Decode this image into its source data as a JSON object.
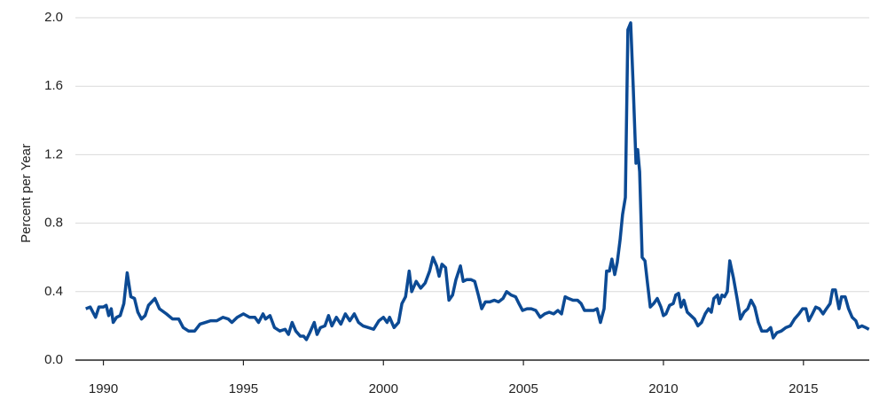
{
  "chart_data": {
    "type": "line",
    "y_label": "Percent per Year",
    "color": "#0c4a94",
    "grid": true,
    "xlim": [
      1989,
      2017.35
    ],
    "xticks": [
      1990,
      1995,
      2000,
      2005,
      2010,
      2015
    ],
    "ylim": [
      0,
      2
    ],
    "yticks": [
      {
        "value": 0,
        "label": "0.0"
      },
      0.4,
      0.8,
      1.2,
      1.6,
      {
        "value": 2,
        "label": "2.0"
      }
    ],
    "x": [
      1989.37,
      1989.53,
      1989.72,
      1989.84,
      1990.0,
      1990.1,
      1990.19,
      1990.28,
      1990.35,
      1990.47,
      1990.6,
      1990.73,
      1990.85,
      1990.98,
      1991.11,
      1991.23,
      1991.36,
      1991.49,
      1991.61,
      1991.84,
      1992.0,
      1992.25,
      1992.47,
      1992.69,
      1992.85,
      1993.04,
      1993.26,
      1993.45,
      1993.64,
      1993.83,
      1994.05,
      1994.27,
      1994.46,
      1994.59,
      1994.78,
      1995.0,
      1995.22,
      1995.41,
      1995.54,
      1995.7,
      1995.79,
      1995.95,
      1996.11,
      1996.3,
      1996.49,
      1996.61,
      1996.74,
      1996.87,
      1997.03,
      1997.15,
      1997.25,
      1997.37,
      1997.53,
      1997.63,
      1997.75,
      1997.91,
      1998.04,
      1998.16,
      1998.32,
      1998.48,
      1998.64,
      1998.8,
      1998.96,
      1999.11,
      1999.27,
      1999.46,
      1999.65,
      1999.84,
      2000.0,
      2000.13,
      2000.22,
      2000.38,
      2000.54,
      2000.66,
      2000.79,
      2000.92,
      2001.01,
      2001.17,
      2001.33,
      2001.49,
      2001.65,
      2001.77,
      2001.9,
      2001.99,
      2002.09,
      2002.22,
      2002.34,
      2002.47,
      2002.59,
      2002.75,
      2002.85,
      2002.97,
      2003.13,
      2003.26,
      2003.39,
      2003.51,
      2003.64,
      2003.8,
      2003.96,
      2004.11,
      2004.27,
      2004.4,
      2004.56,
      2004.72,
      2004.84,
      2004.97,
      2005.13,
      2005.28,
      2005.44,
      2005.6,
      2005.76,
      2005.92,
      2006.08,
      2006.23,
      2006.36,
      2006.49,
      2006.61,
      2006.77,
      2006.93,
      2007.06,
      2007.18,
      2007.34,
      2007.5,
      2007.63,
      2007.75,
      2007.88,
      2007.97,
      2008.07,
      2008.16,
      2008.26,
      2008.35,
      2008.45,
      2008.54,
      2008.64,
      2008.73,
      2008.83,
      2008.92,
      2009.02,
      2009.08,
      2009.15,
      2009.24,
      2009.34,
      2009.43,
      2009.53,
      2009.65,
      2009.78,
      2009.91,
      2010.0,
      2010.09,
      2010.22,
      2010.35,
      2010.44,
      2010.54,
      2010.63,
      2010.73,
      2010.85,
      2010.98,
      2011.11,
      2011.23,
      2011.36,
      2011.49,
      2011.61,
      2011.71,
      2011.8,
      2011.93,
      2011.99,
      2012.09,
      2012.18,
      2012.28,
      2012.37,
      2012.5,
      2012.63,
      2012.75,
      2012.88,
      2013.01,
      2013.13,
      2013.26,
      2013.39,
      2013.51,
      2013.7,
      2013.83,
      2013.92,
      2014.05,
      2014.21,
      2014.37,
      2014.53,
      2014.68,
      2014.84,
      2014.97,
      2015.09,
      2015.19,
      2015.32,
      2015.44,
      2015.57,
      2015.7,
      2015.82,
      2015.95,
      2016.04,
      2016.14,
      2016.27,
      2016.36,
      2016.49,
      2016.61,
      2016.74,
      2016.87,
      2016.96,
      2017.09,
      2017.22,
      2017.34
    ],
    "values": [
      0.3,
      0.31,
      0.25,
      0.31,
      0.31,
      0.32,
      0.26,
      0.3,
      0.22,
      0.25,
      0.26,
      0.33,
      0.51,
      0.37,
      0.36,
      0.28,
      0.24,
      0.26,
      0.32,
      0.36,
      0.3,
      0.27,
      0.24,
      0.24,
      0.19,
      0.17,
      0.17,
      0.21,
      0.22,
      0.23,
      0.23,
      0.25,
      0.24,
      0.22,
      0.25,
      0.27,
      0.25,
      0.25,
      0.22,
      0.27,
      0.24,
      0.26,
      0.19,
      0.17,
      0.18,
      0.15,
      0.22,
      0.17,
      0.14,
      0.14,
      0.12,
      0.16,
      0.22,
      0.15,
      0.19,
      0.2,
      0.26,
      0.2,
      0.25,
      0.21,
      0.27,
      0.23,
      0.27,
      0.22,
      0.2,
      0.19,
      0.18,
      0.23,
      0.25,
      0.22,
      0.25,
      0.19,
      0.22,
      0.33,
      0.37,
      0.52,
      0.4,
      0.46,
      0.42,
      0.45,
      0.52,
      0.6,
      0.55,
      0.49,
      0.56,
      0.54,
      0.35,
      0.38,
      0.47,
      0.55,
      0.46,
      0.47,
      0.47,
      0.46,
      0.38,
      0.3,
      0.34,
      0.34,
      0.35,
      0.34,
      0.36,
      0.4,
      0.38,
      0.37,
      0.33,
      0.29,
      0.3,
      0.3,
      0.29,
      0.25,
      0.27,
      0.28,
      0.27,
      0.29,
      0.27,
      0.37,
      0.36,
      0.35,
      0.35,
      0.33,
      0.29,
      0.29,
      0.29,
      0.3,
      0.22,
      0.3,
      0.52,
      0.52,
      0.59,
      0.5,
      0.57,
      0.7,
      0.85,
      0.95,
      1.93,
      1.97,
      1.6,
      1.15,
      1.23,
      1.1,
      0.6,
      0.58,
      0.45,
      0.31,
      0.33,
      0.36,
      0.31,
      0.26,
      0.27,
      0.32,
      0.33,
      0.38,
      0.39,
      0.31,
      0.35,
      0.28,
      0.26,
      0.24,
      0.2,
      0.22,
      0.27,
      0.3,
      0.28,
      0.36,
      0.38,
      0.33,
      0.38,
      0.37,
      0.4,
      0.58,
      0.48,
      0.36,
      0.24,
      0.28,
      0.3,
      0.35,
      0.31,
      0.22,
      0.17,
      0.17,
      0.19,
      0.13,
      0.16,
      0.17,
      0.19,
      0.2,
      0.24,
      0.27,
      0.3,
      0.3,
      0.23,
      0.27,
      0.31,
      0.3,
      0.27,
      0.3,
      0.33,
      0.41,
      0.41,
      0.3,
      0.37,
      0.37,
      0.3,
      0.25,
      0.23,
      0.19,
      0.2,
      0.19,
      0.18
    ]
  }
}
